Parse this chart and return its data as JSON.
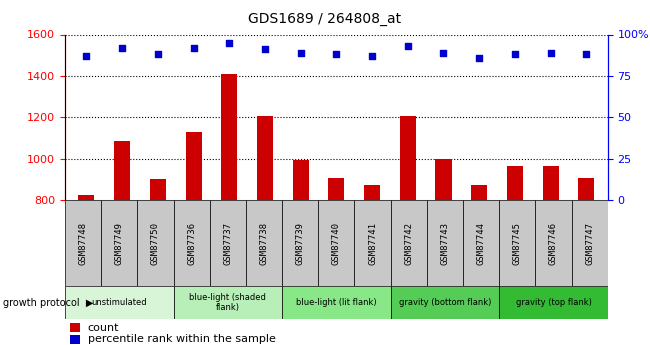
{
  "title": "GDS1689 / 264808_at",
  "samples": [
    "GSM87748",
    "GSM87749",
    "GSM87750",
    "GSM87736",
    "GSM87737",
    "GSM87738",
    "GSM87739",
    "GSM87740",
    "GSM87741",
    "GSM87742",
    "GSM87743",
    "GSM87744",
    "GSM87745",
    "GSM87746",
    "GSM87747"
  ],
  "counts": [
    825,
    1085,
    900,
    1130,
    1410,
    1205,
    995,
    905,
    875,
    1205,
    1000,
    875,
    965,
    965,
    905
  ],
  "percentiles": [
    87,
    92,
    88,
    92,
    95,
    91,
    89,
    88,
    87,
    93,
    89,
    86,
    88,
    89,
    88
  ],
  "ylim_left": [
    800,
    1600
  ],
  "ylim_right": [
    0,
    100
  ],
  "yticks_left": [
    800,
    1000,
    1200,
    1400,
    1600
  ],
  "yticks_right": [
    0,
    25,
    50,
    75,
    100
  ],
  "groups": [
    {
      "label": "unstimulated",
      "start": 0,
      "end": 3,
      "color": "#d8f5d8"
    },
    {
      "label": "blue-light (shaded\nflank)",
      "start": 3,
      "end": 6,
      "color": "#b8eeb8"
    },
    {
      "label": "blue-light (lit flank)",
      "start": 6,
      "end": 9,
      "color": "#88e888"
    },
    {
      "label": "gravity (bottom flank)",
      "start": 9,
      "end": 12,
      "color": "#55cc55"
    },
    {
      "label": "gravity (top flank)",
      "start": 12,
      "end": 15,
      "color": "#33bb33"
    }
  ],
  "bar_color": "#cc0000",
  "dot_color": "#0000cc",
  "background_color": "#ffffff",
  "plot_bg_color": "#ffffff",
  "sample_bg_color": "#c8c8c8",
  "right_axis_label_100": "100%"
}
